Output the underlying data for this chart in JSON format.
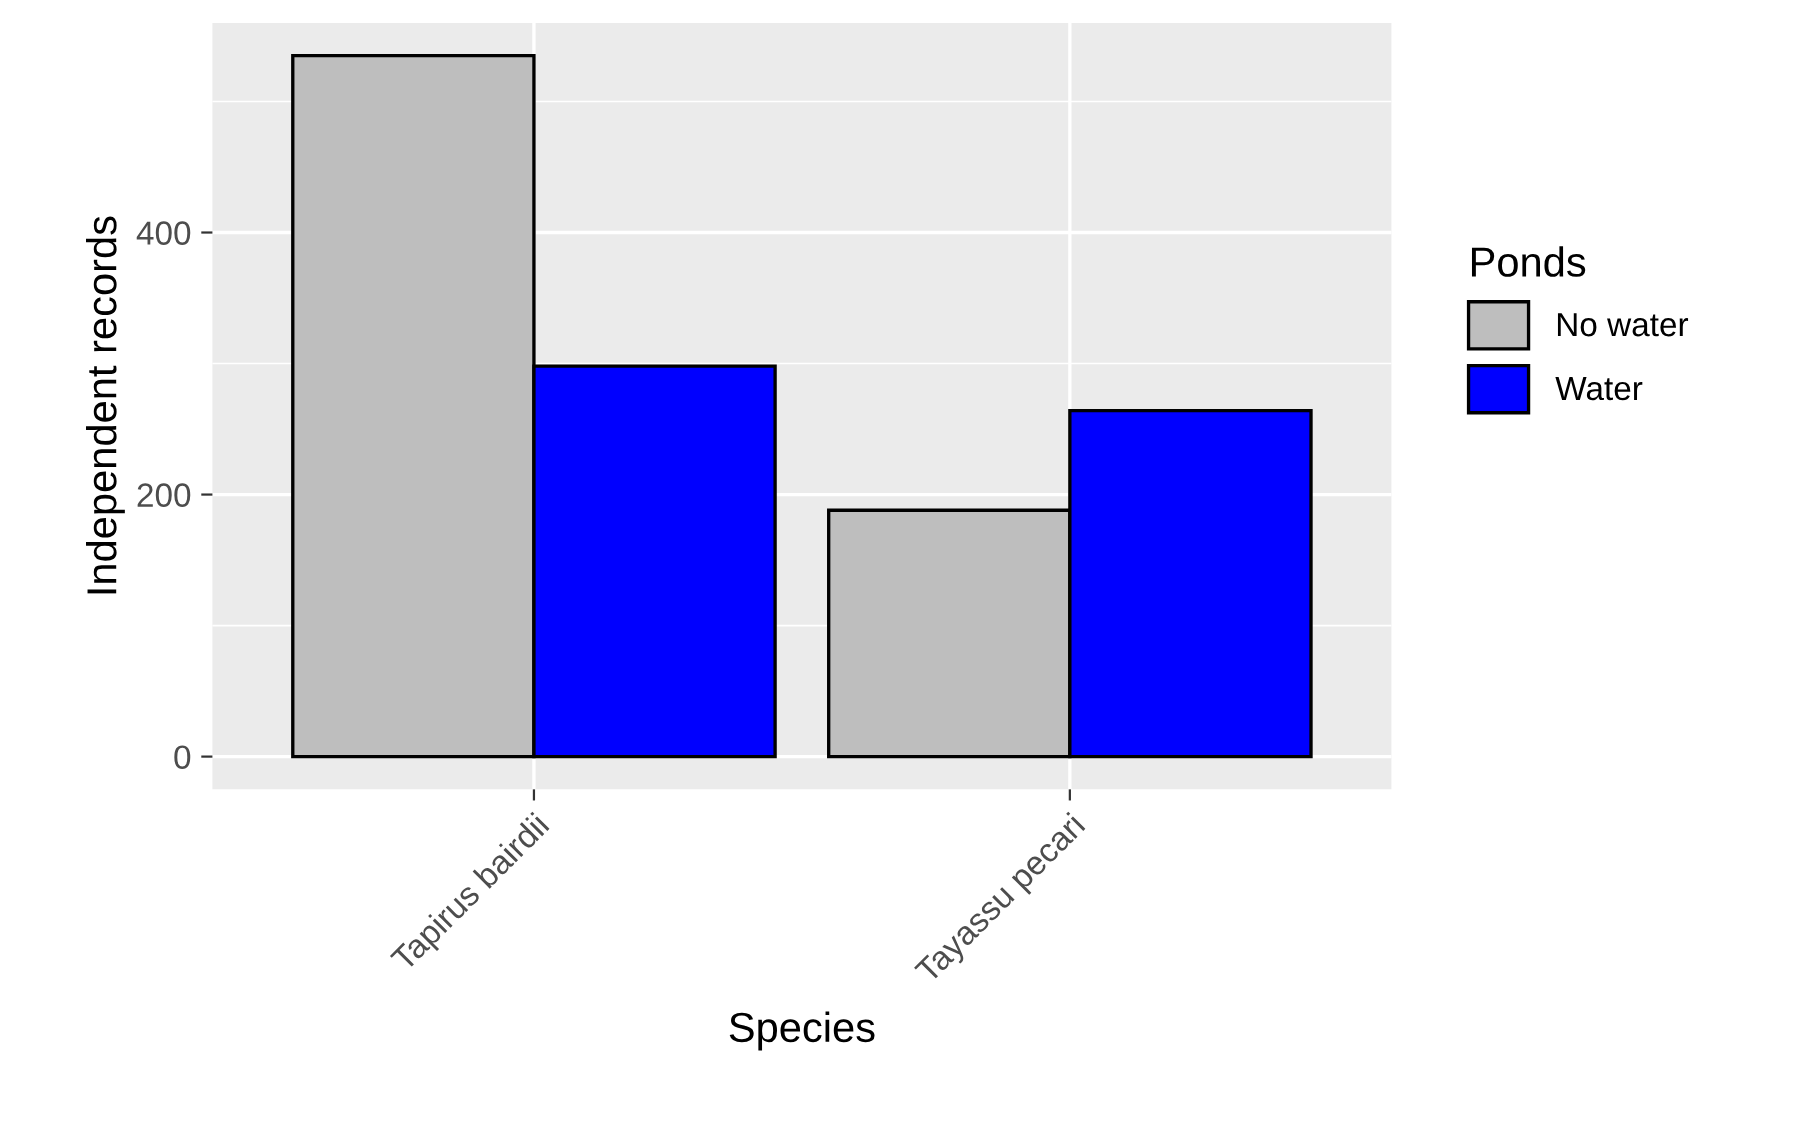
{
  "chart_data": {
    "type": "bar",
    "xlabel": "Species",
    "ylabel": "Independent records",
    "legend_title": "Ponds",
    "categories": [
      "Tapirus bairdii",
      "Tayassu pecari"
    ],
    "series": [
      {
        "name": "No water",
        "color": "#bebebe",
        "values": [
          535,
          188
        ]
      },
      {
        "name": "Water",
        "color": "#0000ff",
        "values": [
          298,
          264
        ]
      }
    ],
    "ylim": [
      -25,
      560
    ],
    "yticks": [
      0,
      {
        "value": 100,
        "label": null
      },
      200,
      {
        "value": 300,
        "label": null
      },
      400,
      {
        "value": 500,
        "label": null
      }
    ],
    "grid": true,
    "legend": "right"
  }
}
